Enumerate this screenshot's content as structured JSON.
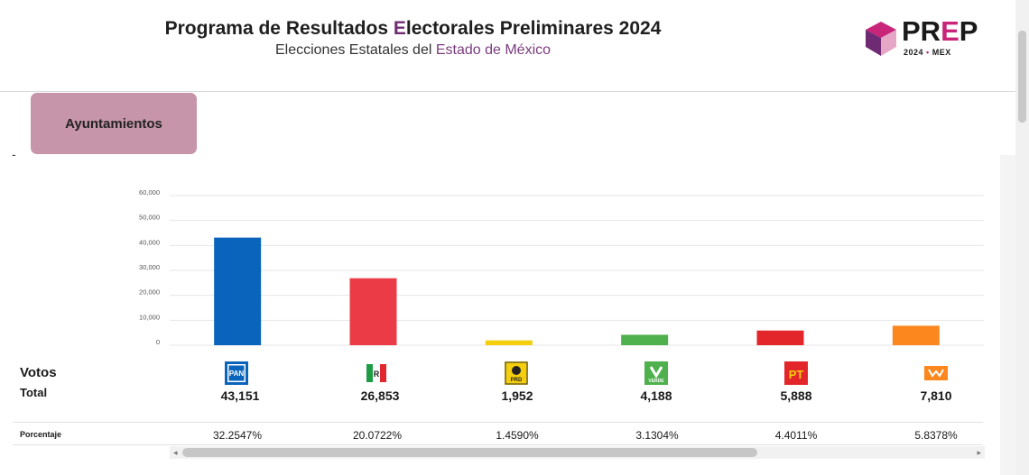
{
  "header": {
    "title_parts": [
      "Programa de Resultados ",
      "E",
      "lectorales Preliminares 2024"
    ],
    "subtitle_parts": [
      "Elecciones Estatales del ",
      "Estado de México"
    ]
  },
  "logo": {
    "text_main": "PR",
    "text_e": "E",
    "text_end": "P",
    "year": "2024",
    "dot": "•",
    "state": "MEX"
  },
  "tab": {
    "label": "Ayuntamientos"
  },
  "dash": "-",
  "rows": {
    "votos": "Votos",
    "total": "Total",
    "porcentaje": "Porcentaje"
  },
  "chart_data": {
    "type": "bar",
    "categories": [
      "PAN",
      "PRI",
      "PRD",
      "VERDE",
      "PT",
      "MC"
    ],
    "values": [
      43151,
      26853,
      1952,
      4188,
      5888,
      7810
    ],
    "colors": [
      "#0a64bc",
      "#ea3b46",
      "#f5cf0d",
      "#4fb14d",
      "#e3262a",
      "#fb871e"
    ],
    "yticks": [
      "60,000",
      "50,000",
      "40,000",
      "30,000",
      "20,000",
      "10,000",
      "0"
    ],
    "ylim": [
      0,
      60000
    ],
    "grid": true
  },
  "parties": [
    {
      "name": "PAN",
      "icon": "pan-logo-icon",
      "votes": "43,151",
      "pct": "32.2547%"
    },
    {
      "name": "PRI",
      "icon": "pri-logo-icon",
      "votes": "26,853",
      "pct": "20.0722%"
    },
    {
      "name": "PRD",
      "icon": "prd-logo-icon",
      "votes": "1,952",
      "pct": "1.4590%"
    },
    {
      "name": "VERDE",
      "icon": "verde-logo-icon",
      "votes": "4,188",
      "pct": "3.1304%"
    },
    {
      "name": "PT",
      "icon": "pt-logo-icon",
      "votes": "5,888",
      "pct": "4.4011%"
    },
    {
      "name": "MC",
      "icon": "mc-logo-icon",
      "votes": "7,810",
      "pct": "5.8378%"
    }
  ],
  "scroll": {
    "left_arrow": "◂",
    "right_arrow": "▸"
  }
}
